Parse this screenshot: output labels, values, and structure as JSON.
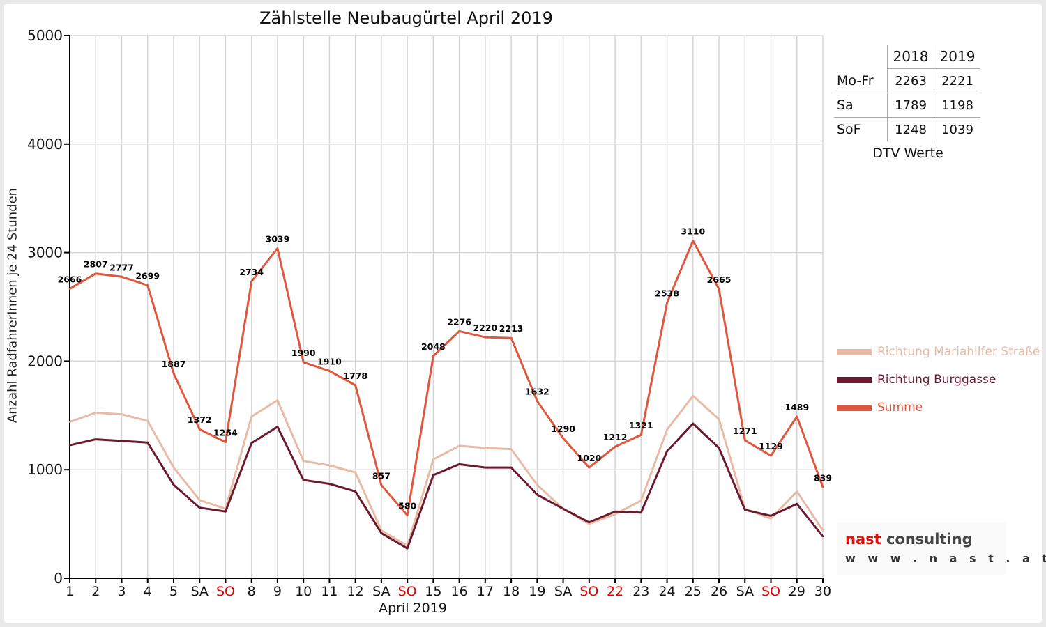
{
  "colors": {
    "mariahilfer": "#e8bba6",
    "burggasse": "#6b1a2e",
    "summe": "#e0573e",
    "grid": "#d6d6d6",
    "weekend_red": "#e00000"
  },
  "dtv_table": {
    "header": [
      "",
      "2018",
      "2019"
    ],
    "rows": [
      {
        "label": "Mo-Fr",
        "v2018": "2263",
        "v2019": "2221"
      },
      {
        "label": "Sa",
        "v2018": "1789",
        "v2019": "1198"
      },
      {
        "label": "SoF",
        "v2018": "1248",
        "v2019": "1039"
      }
    ],
    "caption": "DTV Werte"
  },
  "logo": {
    "word1": "nast",
    "word2": "consulting",
    "url": "w w w . n a s t . a t"
  },
  "chart_data": {
    "type": "line",
    "title": "Zählstelle Neubaugürtel April 2019",
    "xlabel": "April 2019",
    "ylabel": "Anzahl RadfahrerInnen je 24 Stunden",
    "ylim": [
      0,
      5000
    ],
    "yticks": [
      0,
      1000,
      2000,
      3000,
      4000,
      5000
    ],
    "grid": true,
    "legend_position": "right",
    "categories": [
      "1",
      "2",
      "3",
      "4",
      "5",
      "SA",
      "SO",
      "8",
      "9",
      "10",
      "11",
      "12",
      "SA",
      "SO",
      "15",
      "16",
      "17",
      "18",
      "19",
      "SA",
      "SO",
      "22",
      "23",
      "24",
      "25",
      "26",
      "SA",
      "SO",
      "29",
      "30"
    ],
    "red_categories": [
      6,
      13,
      20,
      21,
      27
    ],
    "series": [
      {
        "name": "Richtung Mariahilfer Straße",
        "color": "#e8bba6",
        "values": [
          1440,
          1525,
          1510,
          1450,
          1020,
          720,
          640,
          1490,
          1640,
          1080,
          1040,
          975,
          440,
          300,
          1095,
          1220,
          1200,
          1190,
          860,
          640,
          500,
          590,
          715,
          1370,
          1680,
          1465,
          640,
          550,
          800,
          440
        ]
      },
      {
        "name": "Richtung Burggasse",
        "color": "#6b1a2e",
        "values": [
          1225,
          1280,
          1265,
          1250,
          860,
          650,
          615,
          1245,
          1395,
          905,
          870,
          800,
          415,
          275,
          950,
          1050,
          1020,
          1020,
          770,
          640,
          515,
          615,
          605,
          1170,
          1425,
          1200,
          630,
          575,
          685,
          385
        ]
      },
      {
        "name": "Summe",
        "color": "#e0573e",
        "values": [
          2666,
          2807,
          2777,
          2699,
          1887,
          1372,
          1254,
          2734,
          3039,
          1990,
          1910,
          1778,
          857,
          580,
          2048,
          2276,
          2220,
          2213,
          1632,
          1290,
          1020,
          1212,
          1321,
          2538,
          3110,
          2665,
          1271,
          1129,
          1489,
          839
        ]
      }
    ],
    "data_labels": [
      "2666",
      "2807",
      "2777",
      "2699",
      "1887",
      "1372",
      "1254",
      "2734",
      "3039",
      "1990",
      "1910",
      "1778",
      "857",
      "580",
      "2048",
      "2276",
      "2220",
      "2213",
      "1632",
      "1290",
      "1020",
      "1212",
      "1321",
      "2538",
      "3110",
      "2665",
      "1271",
      "1129",
      "1489",
      "839"
    ]
  }
}
